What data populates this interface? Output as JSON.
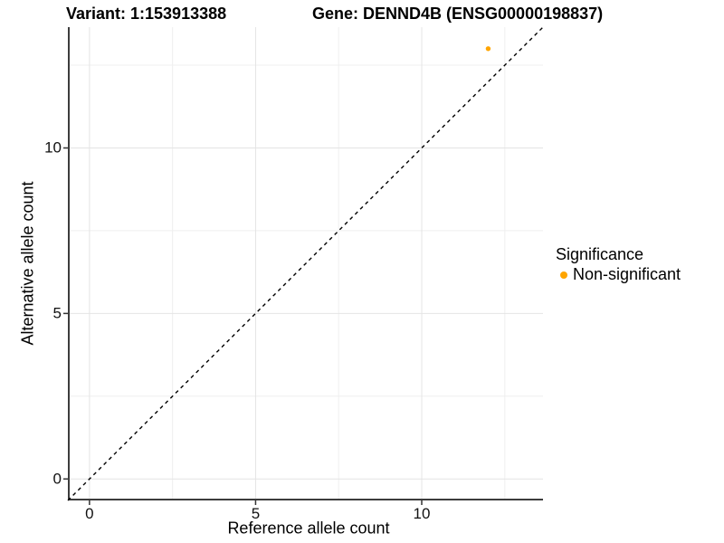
{
  "chart_data": {
    "type": "scatter",
    "title_left": "Variant: 1:153913388",
    "title_right": "Gene: DENND4B (ENSG00000198837)",
    "xlabel": "Reference allele count",
    "ylabel": "Alternative allele count",
    "xlim": [
      -0.65,
      13.65
    ],
    "ylim": [
      -0.65,
      13.65
    ],
    "x_ticks": [
      0,
      5,
      10
    ],
    "y_ticks": [
      0,
      5,
      10
    ],
    "x_minor_ticks": [
      2.5,
      7.5,
      12.5
    ],
    "y_minor_ticks": [
      2.5,
      7.5,
      12.5
    ],
    "grid": "major+minor",
    "points": [
      {
        "x": 12,
        "y": 13,
        "series": "Non-significant",
        "color": "#FFA500"
      }
    ],
    "identity_line": {
      "slope": 1,
      "intercept": 0,
      "style": "dashed",
      "color": "#000000"
    },
    "legend": {
      "title": "Significance",
      "position": "right",
      "items": [
        {
          "label": "Non-significant",
          "color": "#FFA500"
        }
      ]
    },
    "colors": {
      "background": "#ffffff",
      "grid_major": "#e4e4e4",
      "grid_minor": "#efefef",
      "axis_line": "#3c3c3c",
      "tick_mark": "#333333",
      "text": "#000000",
      "point": "#FFA500"
    }
  }
}
